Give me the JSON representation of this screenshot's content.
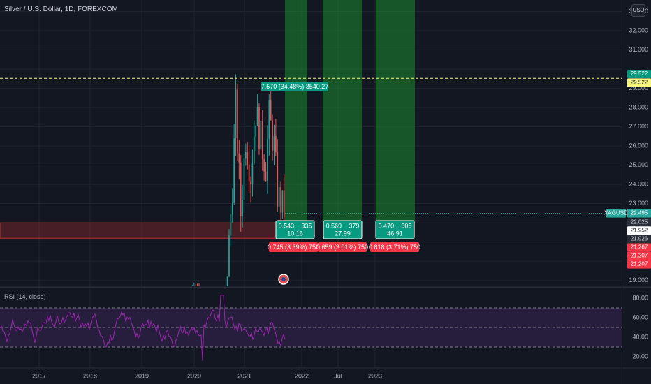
{
  "header": {
    "title": "Silver / U.S. Dollar, 1D, FOREXCOM",
    "currency_button": "USD",
    "rsi_title": "RSI (14, close)"
  },
  "colors": {
    "background": "#131722",
    "grid": "#1f2430",
    "candle_up": "#26a69a",
    "candle_down": "#ef5350",
    "profit_zone": "#1b8a2f",
    "loss_zone": "#a82a2a",
    "rsi_line": "#9c27b0",
    "rsi_band": "#2a1e3f",
    "label_green": "#089981",
    "label_red": "#f23645",
    "label_yellow": "#f7f780"
  },
  "chart_data": [
    {
      "type": "candlestick",
      "symbol": "XAGUSD",
      "price_axis": {
        "ticks": [
          "33.000",
          "32.000",
          "31.000",
          "29.000",
          "28.000",
          "27.000",
          "26.000",
          "25.000",
          "24.000",
          "23.000",
          "19.000"
        ],
        "range": [
          18.7,
          33.6
        ]
      },
      "time_axis": {
        "ticks": [
          "2017",
          "2018",
          "2019",
          "2020",
          "2021",
          "2022",
          "Jul",
          "2023"
        ]
      },
      "horizontal_line": 29.522,
      "support_zone": [
        21.2,
        22.0
      ],
      "price_labels": [
        {
          "text": "29.522",
          "color": "#089981",
          "text_color": "#ffffff",
          "price": 29.75
        },
        {
          "text": "29.522",
          "color": "#f7f780",
          "text_color": "#131722",
          "price": 29.3
        },
        {
          "text": "XAGUSD",
          "color": "#26a69a",
          "text_color": "#ffffff",
          "price": 22.495,
          "left": true
        },
        {
          "text": "22.495",
          "color": "#26a69a",
          "text_color": "#ffffff",
          "price": 22.495
        },
        {
          "text": "22.025",
          "color": "#2a2e39",
          "text_color": "#d1d4dc",
          "price": 22.025
        },
        {
          "text": "21.952",
          "color": "#ffffff",
          "text_color": "#131722",
          "price": 21.6
        },
        {
          "text": "21.926",
          "color": "#2a2e39",
          "text_color": "#d1d4dc",
          "price": 21.16
        },
        {
          "text": "21.267",
          "color": "#f23645",
          "text_color": "#ffffff",
          "price": 20.72
        },
        {
          "text": "21.207",
          "color": "#f23645",
          "text_color": "#ffffff",
          "price": 20.28
        },
        {
          "text": "21.207",
          "color": "#f23645",
          "text_color": "#ffffff",
          "price": 19.84
        }
      ],
      "positions": [
        {
          "profit_label": "7.570 (34.48%) 3540.27",
          "box_line1": "0.543 ~ 335",
          "box_line2": "10.16",
          "loss_label": "0.745 (3.39%) 750",
          "entry": 22.0,
          "target": 40.0,
          "stop": 21.25
        },
        {
          "profit_label": "",
          "box_line1": "0.569 ~ 379",
          "box_line2": "27.99",
          "loss_label": "0.659 (3.01%) 750",
          "entry": 22.0,
          "target": 40.0,
          "stop": 21.25
        },
        {
          "profit_label": "",
          "box_line1": "0.470 ~ 305",
          "box_line2": "46.91",
          "loss_label": "0.818 (3.71%) 750",
          "entry": 22.0,
          "target": 40.0,
          "stop": 21.25
        }
      ]
    },
    {
      "type": "line",
      "name": "RSI (14, close)",
      "y_ticks": [
        "80.00",
        "60.00",
        "40.00",
        "20.00"
      ],
      "range": [
        10,
        90
      ],
      "band": [
        30,
        70
      ],
      "midline": 50
    }
  ]
}
